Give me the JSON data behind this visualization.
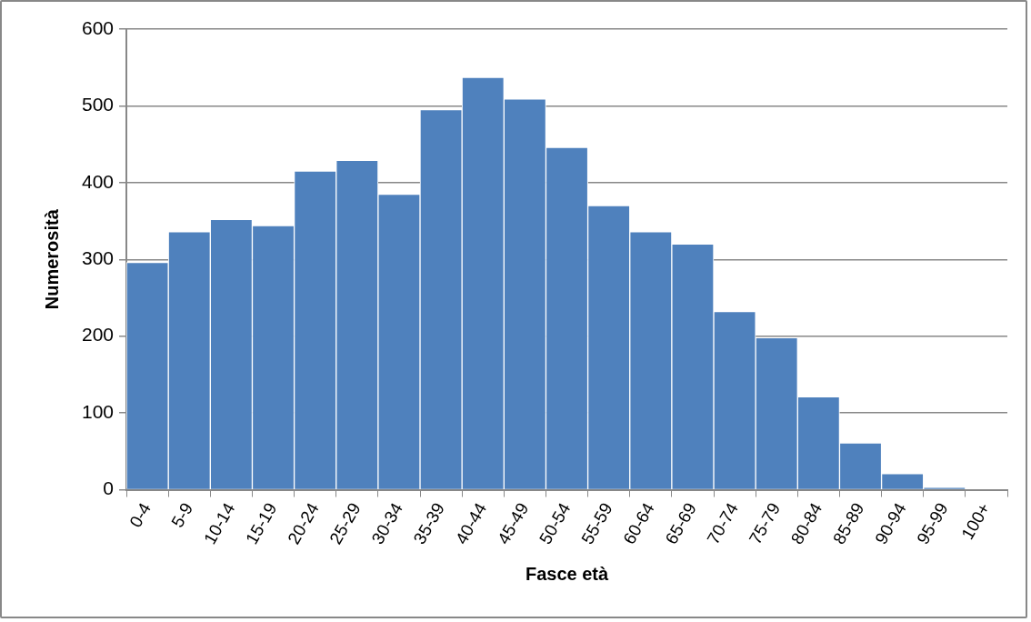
{
  "chart_data": {
    "type": "bar",
    "xlabel": "Fasce età",
    "ylabel": "Numerosità",
    "categories": [
      "0-4",
      "5-9",
      "10-14",
      "15-19",
      "20-24",
      "25-29",
      "30-34",
      "35-39",
      "40-44",
      "45-49",
      "50-54",
      "55-59",
      "60-64",
      "65-69",
      "70-74",
      "75-79",
      "80-84",
      "85-89",
      "90-94",
      "95-99",
      "100+"
    ],
    "values": [
      296,
      336,
      352,
      344,
      415,
      429,
      385,
      495,
      537,
      509,
      446,
      370,
      336,
      320,
      232,
      198,
      121,
      61,
      21,
      3,
      0
    ],
    "color": "#4f81bd",
    "ylim": [
      0,
      600
    ],
    "yticks": [
      0,
      100,
      200,
      300,
      400,
      500,
      600
    ],
    "grid": "y",
    "legend": false
  }
}
